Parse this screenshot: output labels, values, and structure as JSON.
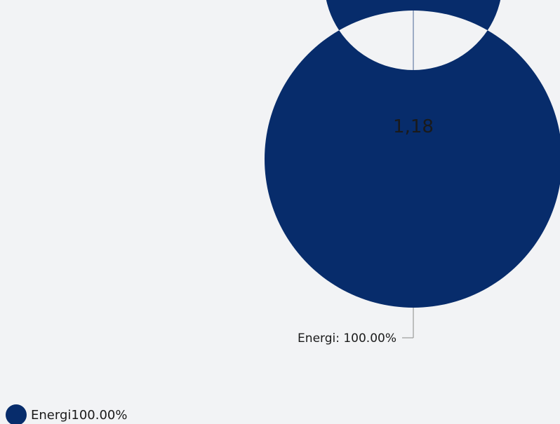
{
  "chart_data": {
    "type": "pie",
    "variant": "donut",
    "center_label": "1,18",
    "slices": [
      {
        "name": "Energi",
        "value": 100.0,
        "label": "Energi: 100.00%",
        "legend_text": "Energi100.00%",
        "color": "#072c6b"
      }
    ],
    "legend_placement": "bottom-left",
    "background_color": "#f2f3f5"
  }
}
